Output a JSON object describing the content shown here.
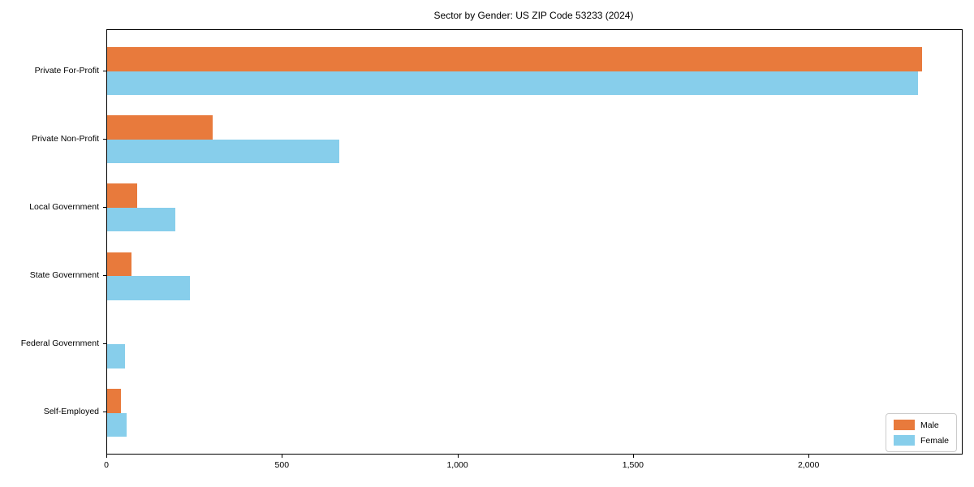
{
  "title": "Sector by Gender: US ZIP Code 53233 (2024)",
  "colors": {
    "male": "#e87a3c",
    "female": "#87ceeb",
    "axis": "#000000",
    "legend_border": "#cccccc",
    "background": "#ffffff"
  },
  "legend": {
    "position": "lower right",
    "items": [
      {
        "label": "Male",
        "color": "#e87a3c"
      },
      {
        "label": "Female",
        "color": "#87ceeb"
      }
    ]
  },
  "chart_data": {
    "type": "bar",
    "orientation": "horizontal",
    "title": "Sector by Gender: US ZIP Code 53233 (2024)",
    "categories": [
      "Private For-Profit",
      "Private Non-Profit",
      "Local Government",
      "State Government",
      "Federal Government",
      "Self-Employed"
    ],
    "series": [
      {
        "name": "Male",
        "color": "#e87a3c",
        "values": [
          2320,
          300,
          85,
          70,
          0,
          40
        ]
      },
      {
        "name": "Female",
        "color": "#87ceeb",
        "values": [
          2310,
          660,
          195,
          235,
          50,
          55
        ]
      }
    ],
    "xlabel": "",
    "ylabel": "",
    "xlim": [
      0,
      2434
    ],
    "xticks": [
      0,
      500,
      1000,
      1500,
      2000
    ],
    "xtick_labels": [
      "0",
      "500",
      "1,000",
      "1,500",
      "2,000"
    ],
    "grid": false,
    "legend_position": "lower right"
  }
}
